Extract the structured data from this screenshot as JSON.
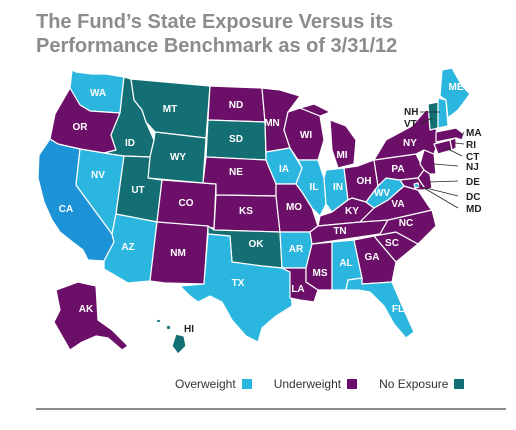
{
  "title": "The Fund’s State Exposure Versus its Performance Benchmark as of 3/31/12",
  "legend": [
    {
      "label": "Overweight",
      "key": "over"
    },
    {
      "label": "Underweight",
      "key": "under"
    },
    {
      "label": "No Exposure",
      "key": "none"
    }
  ],
  "colors": {
    "over": "#2bb6e0",
    "under": "#6b0f68",
    "none": "#136f73",
    "ca": "#1b93d6"
  },
  "states": {
    "WA": "over",
    "OR": "under",
    "CA": "over",
    "ID": "none",
    "NV": "over",
    "MT": "none",
    "WY": "none",
    "UT": "none",
    "AZ": "over",
    "CO": "under",
    "NM": "under",
    "ND": "under",
    "SD": "none",
    "NE": "under",
    "KS": "under",
    "OK": "none",
    "TX": "over",
    "MN": "under",
    "IA": "over",
    "MO": "under",
    "AR": "over",
    "LA": "under",
    "WI": "under",
    "IL": "over",
    "MI": "under",
    "IN": "over",
    "OH": "under",
    "KY": "under",
    "TN": "under",
    "MS": "under",
    "AL": "over",
    "GA": "under",
    "FL": "over",
    "SC": "under",
    "NC": "under",
    "VA": "under",
    "WV": "over",
    "PA": "under",
    "NY": "under",
    "ME": "over",
    "VT": "none",
    "NH": "over",
    "MA": "under",
    "RI": "under",
    "CT": "under",
    "NJ": "under",
    "DE": "under",
    "MD": "under",
    "DC": "over",
    "AK": "under",
    "HI": "none"
  }
}
